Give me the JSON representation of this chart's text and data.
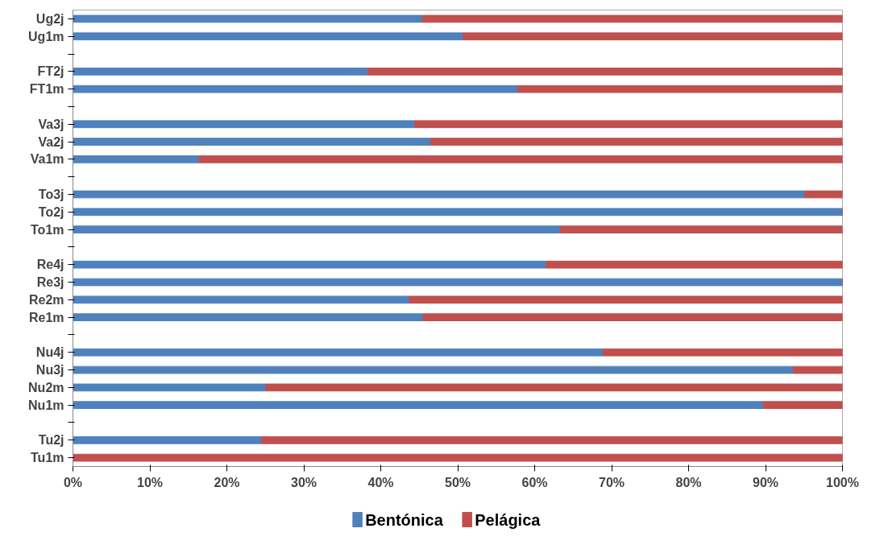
{
  "chart_data": {
    "type": "bar",
    "orientation": "horizontal",
    "stacked": true,
    "categories": [
      "Ug2j",
      "Ug1m",
      null,
      "FT2j",
      "FT1m",
      null,
      "Va3j",
      "Va2j",
      "Va1m",
      null,
      "To3j",
      "To2j",
      "To1m",
      null,
      "Re4j",
      "Re3j",
      "Re2m",
      "Re1m",
      null,
      "Nu4j",
      "Nu3j",
      "Nu2m",
      "Nu1m",
      null,
      "Tu2j",
      "Tu1m"
    ],
    "series": [
      {
        "name": "Bentónica",
        "color": "#4f81bd",
        "values": [
          45.4,
          50.7,
          null,
          38.3,
          57.8,
          null,
          44.4,
          46.5,
          16.4,
          null,
          95.1,
          100,
          63.3,
          null,
          61.5,
          100,
          43.7,
          45.5,
          null,
          68.9,
          93.6,
          25.1,
          89.7,
          null,
          24.5,
          0
        ]
      },
      {
        "name": "Pelágica",
        "color": "#c0504d",
        "values": [
          54.6,
          49.3,
          null,
          61.7,
          42.2,
          null,
          55.6,
          53.5,
          83.6,
          null,
          4.9,
          0,
          36.7,
          null,
          38.5,
          0,
          56.3,
          54.5,
          null,
          31.1,
          6.4,
          74.9,
          10.3,
          null,
          75.5,
          100
        ]
      }
    ],
    "xlim": [
      0,
      100
    ],
    "xticks": [
      {
        "value": 0,
        "label": "0%"
      },
      {
        "value": 10,
        "label": "10%"
      },
      {
        "value": 20,
        "label": "20%"
      },
      {
        "value": 30,
        "label": "30%"
      },
      {
        "value": 40,
        "label": "40%"
      },
      {
        "value": 50,
        "label": "50%"
      },
      {
        "value": 60,
        "label": "60%"
      },
      {
        "value": 70,
        "label": "70%"
      },
      {
        "value": 80,
        "label": "80%"
      },
      {
        "value": 90,
        "label": "90%"
      },
      {
        "value": 100,
        "label": "100%"
      }
    ],
    "grid": false,
    "legend": "bottom"
  }
}
